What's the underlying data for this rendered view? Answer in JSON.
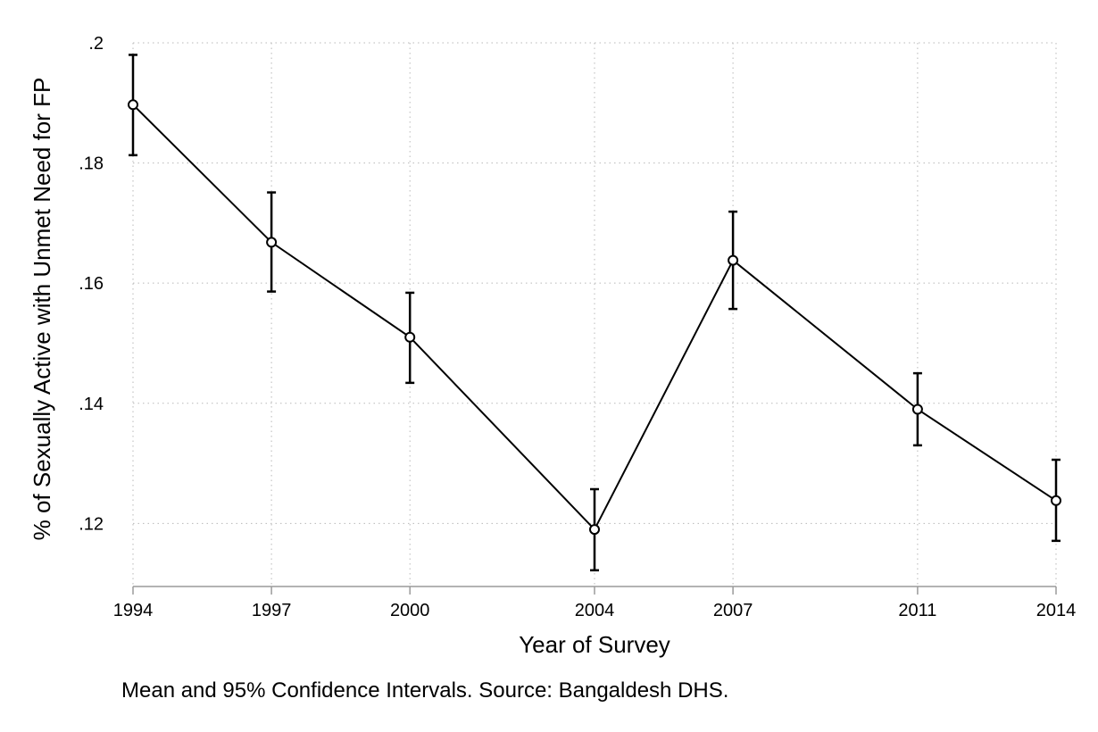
{
  "chart_data": {
    "type": "line",
    "title": "",
    "xlabel": "Year of Survey",
    "ylabel": "% of Sexually Active with Unmet Need for FP",
    "note": "Mean and 95% Confidence Intervals.  Source: Bangaldesh DHS.",
    "x": [
      1994,
      1997,
      2000,
      2004,
      2007,
      2011,
      2014
    ],
    "x_tick_labels": [
      "1994",
      "1997",
      "2000",
      "2004",
      "2007",
      "2011",
      "2014"
    ],
    "y_ticks": [
      0.12,
      0.14,
      0.16,
      0.18,
      0.2
    ],
    "y_tick_labels": [
      ".12",
      ".14",
      ".16",
      ".18",
      ".2"
    ],
    "ylim": [
      0.1095,
      0.2
    ],
    "xlim": [
      1994,
      2014
    ],
    "grid": true,
    "series": [
      {
        "name": "Mean",
        "values": [
          0.1897,
          0.1668,
          0.151,
          0.119,
          0.1638,
          0.139,
          0.1238
        ],
        "ci_lower": [
          0.1813,
          0.1586,
          0.1434,
          0.1122,
          0.1557,
          0.133,
          0.1171
        ],
        "ci_upper": [
          0.198,
          0.1751,
          0.1584,
          0.1257,
          0.1719,
          0.145,
          0.1306
        ]
      }
    ],
    "colors": {
      "line": "#000000",
      "grid": "#b8b8b8",
      "axis": "#9a9a9a"
    }
  }
}
